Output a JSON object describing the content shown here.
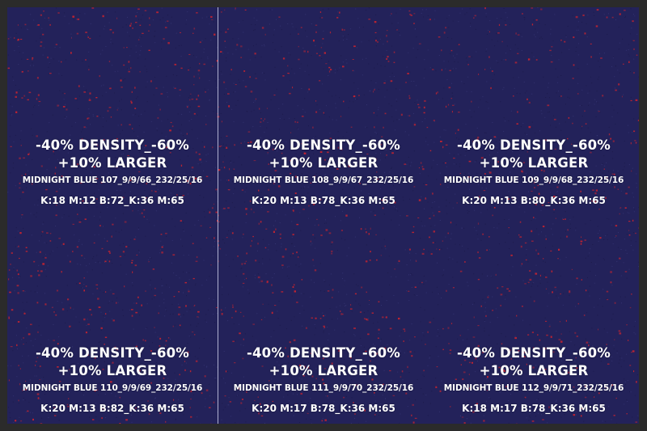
{
  "colors": {
    "background": "#23225a",
    "speckle": "#c8232f",
    "frame": "#2b2b2b",
    "text": "#ffffff"
  },
  "swatches": [
    {
      "line1": "-40% DENSITY_-60%",
      "line2": "+10% LARGER",
      "line3": "MIDNIGHT BLUE 107_9/9/66_232/25/16",
      "line4": "K:18 M:12 B:72_K:36 M:65"
    },
    {
      "line1": "-40% DENSITY_-60%",
      "line2": "+10% LARGER",
      "line3": "MIDNIGHT BLUE 108_9/9/67_232/25/16",
      "line4": "K:20 M:13 B:78_K:36 M:65"
    },
    {
      "line1": "-40% DENSITY_-60%",
      "line2": "+10% LARGER",
      "line3": "MIDNIGHT BLUE 109_9/9/68_232/25/16",
      "line4": "K:20 M:13 B:80_K:36 M:65"
    },
    {
      "line1": "-40% DENSITY_-60%",
      "line2": "+10% LARGER",
      "line3": "MIDNIGHT BLUE 110_9/9/69_232/25/16",
      "line4": "K:20 M:13 B:82_K:36 M:65"
    },
    {
      "line1": "-40% DENSITY_-60%",
      "line2": "+10% LARGER",
      "line3": "MIDNIGHT BLUE 111_9/9/70_232/25/16",
      "line4": "K:20 M:17 B:78_K:36 M:65"
    },
    {
      "line1": "-40% DENSITY_-60%",
      "line2": "+10% LARGER",
      "line3": "MIDNIGHT BLUE 112_9/9/71_232/25/16",
      "line4": "K:18 M:17 B:78_K:36 M:65"
    }
  ]
}
